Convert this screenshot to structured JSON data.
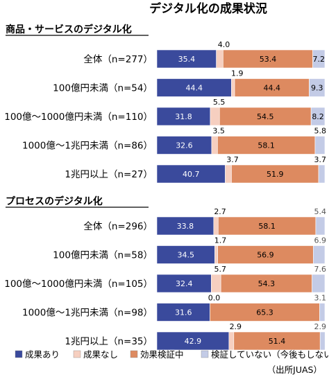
{
  "chart_data": {
    "type": "bar",
    "orientation": "horizontal",
    "stacked": true,
    "percent_stacked": true,
    "title": "デジタル化の成果状況",
    "source": "（出所JUAS）",
    "xlim": [
      0,
      100
    ],
    "grid": false,
    "legend_position": "bottom",
    "series": [
      {
        "name": "成果あり",
        "color": "#3a4a9c"
      },
      {
        "name": "成果なし",
        "color": "#f6cfc0"
      },
      {
        "name": "効果検証中",
        "color": "#dd8a60"
      },
      {
        "name": "検証していない（今後もしない）",
        "color": "#c3cbe6"
      }
    ],
    "groups": [
      {
        "name": "商品・サービスのデジタル化",
        "rows": [
          {
            "label": "全体（n=277）",
            "values": [
              35.4,
              4.0,
              53.4,
              7.2
            ]
          },
          {
            "label": "100億円未満（n=54）",
            "values": [
              44.4,
              1.9,
              44.4,
              9.3
            ]
          },
          {
            "label": "100億〜1000億円未満（n=110）",
            "values": [
              31.8,
              5.5,
              54.5,
              8.2
            ]
          },
          {
            "label": "1000億〜1兆円未満（n=86）",
            "values": [
              32.6,
              3.5,
              58.1,
              5.8
            ]
          },
          {
            "label": "1兆円以上（n=27）",
            "values": [
              40.7,
              3.7,
              51.9,
              3.7
            ]
          }
        ]
      },
      {
        "name": "プロセスのデジタル化",
        "rows": [
          {
            "label": "全体（n=296）",
            "values": [
              33.8,
              2.7,
              58.1,
              5.4
            ]
          },
          {
            "label": "100億円未満（n=58）",
            "values": [
              34.5,
              1.7,
              56.9,
              6.9
            ]
          },
          {
            "label": "100億〜1000億円未満（n=105）",
            "values": [
              32.4,
              5.7,
              54.3,
              7.6
            ]
          },
          {
            "label": "1000億〜1兆円未満（n=98）",
            "values": [
              31.6,
              0.0,
              65.3,
              3.1
            ]
          },
          {
            "label": "1兆円以上（n=35）",
            "values": [
              42.9,
              2.9,
              51.4,
              2.9
            ]
          }
        ]
      }
    ]
  }
}
